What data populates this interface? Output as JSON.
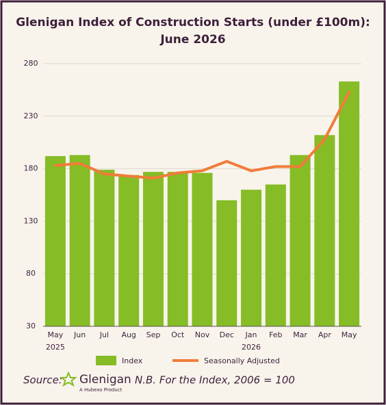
{
  "chart_data": {
    "type": "bar-line",
    "title": "Glenigan Index of Construction Starts (under £100m):",
    "subtitle": "June 2026",
    "categories": [
      "May",
      "Jun",
      "Jul",
      "Aug",
      "Sep",
      "Oct",
      "Nov",
      "Dec",
      "Jan",
      "Feb",
      "Mar",
      "Apr",
      "May"
    ],
    "year_labels": [
      "2025",
      null,
      null,
      null,
      null,
      null,
      null,
      null,
      "2026",
      null,
      null,
      null,
      null
    ],
    "series": [
      {
        "name": "Index",
        "type": "bar",
        "color": "#86bc25",
        "values": [
          192,
          193,
          179,
          174,
          177,
          177,
          176,
          150,
          160,
          165,
          193,
          212,
          263
        ]
      },
      {
        "name": "Seasonally Adjusted",
        "type": "line",
        "color": "#f07c3a",
        "values": [
          183,
          185,
          175,
          173,
          171,
          176,
          178,
          187,
          178,
          182,
          182,
          208,
          253
        ]
      }
    ],
    "ylim": [
      30,
      280
    ],
    "yticks": [
      30,
      80,
      130,
      180,
      230,
      280
    ],
    "grid": true,
    "legend": "bottom",
    "footer": {
      "source": "Source:",
      "logo": "Glenigan",
      "logo_tagline": "A Hubexo Product",
      "note": "N.B. For the Index, 2006 = 100"
    }
  }
}
